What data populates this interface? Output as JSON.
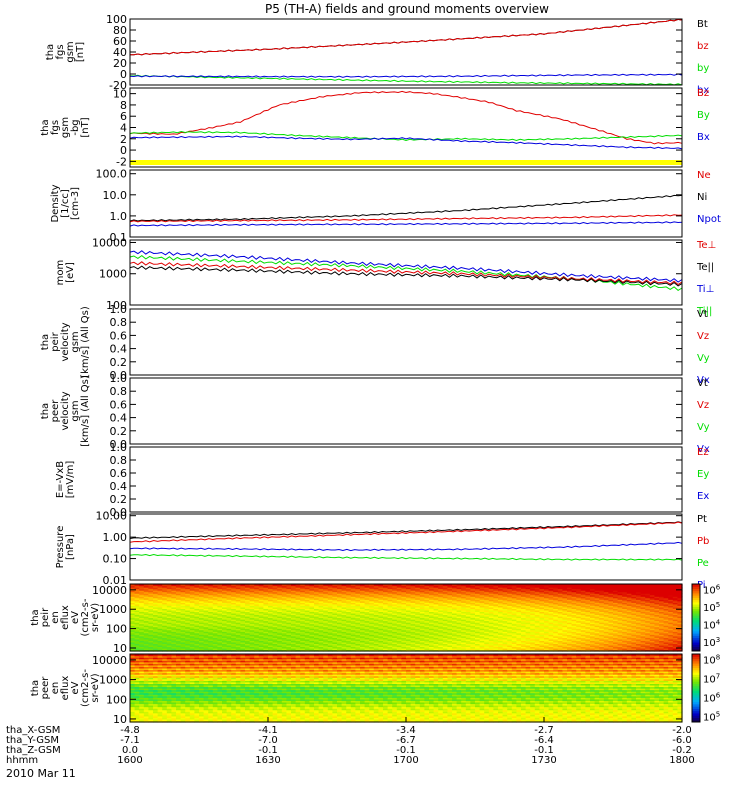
{
  "title": "P5 (TH-A) fields and ground moments overview",
  "date_label": "2010 Mar 11",
  "colors": {
    "black": "#000000",
    "red": "#e00000",
    "green": "#00dd00",
    "blue": "#0000dd",
    "yellow": "#ffff00"
  },
  "chart_data": [
    {
      "type": "line",
      "ylabel": [
        "tha",
        "fgs",
        "gsm",
        "[nT]"
      ],
      "yscale": "linear",
      "ylim": [
        -20,
        100
      ],
      "yticks": [
        "100",
        "80",
        "60",
        "40",
        "20",
        "0",
        "-20"
      ],
      "ytick_values": [
        100,
        80,
        60,
        40,
        20,
        0,
        -20
      ],
      "legend": [
        {
          "text": "Bt",
          "color": "black"
        },
        {
          "text": "bz",
          "color": "red"
        },
        {
          "text": "by",
          "color": "green"
        },
        {
          "text": "bx",
          "color": "blue"
        }
      ],
      "series": [
        {
          "color": "black",
          "x": [
            0,
            0.25,
            0.5,
            0.75,
            1
          ],
          "y": [
            35,
            45,
            58,
            73,
            99
          ]
        },
        {
          "color": "red",
          "x": [
            0,
            0.25,
            0.5,
            0.75,
            1
          ],
          "y": [
            35,
            45,
            58,
            73,
            99
          ]
        },
        {
          "color": "green",
          "x": [
            0,
            0.1,
            0.3,
            0.5,
            0.7,
            1
          ],
          "y": [
            -3,
            -5,
            -9,
            -13,
            -16,
            -19
          ]
        },
        {
          "color": "blue",
          "x": [
            0,
            0.2,
            0.4,
            0.6,
            0.8,
            1
          ],
          "y": [
            -4,
            -4.5,
            -5,
            -4,
            -2,
            -1
          ]
        }
      ]
    },
    {
      "type": "line",
      "ylabel": [
        "tha",
        "fgs",
        "gsm",
        "-bg",
        "[nT]"
      ],
      "yscale": "linear",
      "ylim": [
        -3,
        11
      ],
      "yticks": [
        "10",
        "8",
        "6",
        "4",
        "2",
        "0",
        "-2"
      ],
      "ytick_values": [
        10,
        8,
        6,
        4,
        2,
        0,
        -2
      ],
      "legend": [
        {
          "text": "Bz",
          "color": "red"
        },
        {
          "text": "By",
          "color": "green"
        },
        {
          "text": "Bx",
          "color": "blue"
        }
      ],
      "flag_bar": true,
      "series": [
        {
          "color": "red",
          "x": [
            0,
            0.08,
            0.12,
            0.15,
            0.2,
            0.27,
            0.35,
            0.42,
            0.5,
            0.55,
            0.6,
            0.65,
            0.7,
            0.78,
            0.85,
            0.9,
            0.95,
            1
          ],
          "y": [
            3,
            2.8,
            3.5,
            4,
            5,
            8,
            9.5,
            10.2,
            10.3,
            10,
            9.3,
            8.5,
            7,
            5.5,
            3.5,
            2,
            1.2,
            1.3
          ]
        },
        {
          "color": "green",
          "x": [
            0,
            0.1,
            0.2,
            0.3,
            0.4,
            0.5,
            0.6,
            0.7,
            0.8,
            0.9,
            1
          ],
          "y": [
            3,
            3.2,
            3.1,
            2.6,
            2.2,
            1.8,
            2,
            1.8,
            2,
            2.3,
            2.6
          ]
        },
        {
          "color": "blue",
          "x": [
            0,
            0.1,
            0.2,
            0.3,
            0.4,
            0.5,
            0.6,
            0.7,
            0.8,
            0.9,
            1
          ],
          "y": [
            2.2,
            2.3,
            2.4,
            2.1,
            1.9,
            2.1,
            1.6,
            1.3,
            0.9,
            0.5,
            0.3
          ]
        }
      ]
    },
    {
      "type": "line",
      "ylabel": [
        "Density",
        "[1/cc]",
        "[cm-3]"
      ],
      "yscale": "log",
      "ylim": [
        0.1,
        150
      ],
      "yticks": [
        "100.0",
        "10.0",
        "1.0",
        "0.1"
      ],
      "ytick_values": [
        100,
        10,
        1,
        0.1
      ],
      "legend": [
        {
          "text": "Ne",
          "color": "red"
        },
        {
          "text": "Ni",
          "color": "black"
        },
        {
          "text": "Npot",
          "color": "blue"
        }
      ],
      "series": [
        {
          "color": "black",
          "x": [
            0,
            0.2,
            0.4,
            0.6,
            0.8,
            1
          ],
          "y": [
            0.6,
            0.7,
            1.0,
            1.8,
            4.0,
            9.5
          ]
        },
        {
          "color": "red",
          "x": [
            0,
            0.2,
            0.4,
            0.6,
            0.8,
            1
          ],
          "y": [
            0.55,
            0.6,
            0.65,
            0.75,
            0.85,
            1.1
          ]
        },
        {
          "color": "blue",
          "x": [
            0,
            0.2,
            0.4,
            0.6,
            0.8,
            1
          ],
          "y": [
            0.35,
            0.38,
            0.4,
            0.42,
            0.45,
            0.5
          ]
        }
      ]
    },
    {
      "type": "line",
      "ylabel": [
        "mom",
        "[eV]"
      ],
      "yscale": "log",
      "ylim": [
        100,
        12000
      ],
      "yticks": [
        "10000",
        "1000",
        "100"
      ],
      "ytick_values": [
        10000,
        1000,
        100
      ],
      "legend": [
        {
          "text": "Te⊥",
          "color": "red"
        },
        {
          "text": "Te||",
          "color": "black"
        },
        {
          "text": "Ti⊥",
          "color": "blue"
        },
        {
          "text": "Ti||",
          "color": "green"
        }
      ],
      "series": [
        {
          "color": "blue",
          "x": [
            0,
            0.2,
            0.4,
            0.6,
            0.8,
            1
          ],
          "y": [
            5000,
            3500,
            2200,
            1500,
            900,
            600
          ]
        },
        {
          "color": "green",
          "x": [
            0,
            0.2,
            0.4,
            0.6,
            0.8,
            1
          ],
          "y": [
            3500,
            2500,
            1800,
            1200,
            700,
            320
          ]
        },
        {
          "color": "red",
          "x": [
            0,
            0.2,
            0.4,
            0.6,
            0.8,
            1
          ],
          "y": [
            2200,
            1700,
            1300,
            1000,
            700,
            500
          ]
        },
        {
          "color": "black",
          "x": [
            0,
            0.2,
            0.4,
            0.6,
            0.8,
            1
          ],
          "y": [
            1600,
            1300,
            1000,
            850,
            650,
            450
          ]
        }
      ]
    },
    {
      "type": "line",
      "ylabel": [
        "tha",
        "peir",
        "velocity",
        "gsm",
        "[km/s] (All Qs)"
      ],
      "yscale": "linear",
      "ylim": [
        0,
        1
      ],
      "yticks": [
        "1.0",
        "0.8",
        "0.6",
        "0.4",
        "0.2",
        "0.0"
      ],
      "ytick_values": [
        1,
        0.8,
        0.6,
        0.4,
        0.2,
        0
      ],
      "legend": [
        {
          "text": "Vt",
          "color": "black"
        },
        {
          "text": "Vz",
          "color": "red"
        },
        {
          "text": "Vy",
          "color": "green"
        },
        {
          "text": "Vx",
          "color": "blue"
        }
      ],
      "series": []
    },
    {
      "type": "line",
      "ylabel": [
        "tha",
        "peer",
        "velocity",
        "gsm",
        "[km/s] (All Qs)"
      ],
      "yscale": "linear",
      "ylim": [
        0,
        1
      ],
      "yticks": [
        "1.0",
        "0.8",
        "0.6",
        "0.4",
        "0.2",
        "0.0"
      ],
      "ytick_values": [
        1,
        0.8,
        0.6,
        0.4,
        0.2,
        0
      ],
      "legend": [
        {
          "text": "Vt",
          "color": "black"
        },
        {
          "text": "Vz",
          "color": "red"
        },
        {
          "text": "Vy",
          "color": "green"
        },
        {
          "text": "Vx",
          "color": "blue"
        }
      ],
      "series": []
    },
    {
      "type": "line",
      "ylabel": [
        "E=-VxB",
        "[mV/m]"
      ],
      "yscale": "linear",
      "ylim": [
        0,
        1
      ],
      "yticks": [
        "1.0",
        "0.8",
        "0.6",
        "0.4",
        "0.2",
        "0.0"
      ],
      "ytick_values": [
        1,
        0.8,
        0.6,
        0.4,
        0.2,
        0
      ],
      "legend": [
        {
          "text": "Ez",
          "color": "red"
        },
        {
          "text": "Ey",
          "color": "green"
        },
        {
          "text": "Ex",
          "color": "blue"
        }
      ],
      "series": []
    },
    {
      "type": "line",
      "ylabel": [
        "Pressure",
        "[nPa]"
      ],
      "yscale": "log",
      "ylim": [
        0.01,
        12
      ],
      "yticks": [
        "10.00",
        "1.00",
        "0.10",
        "0.01"
      ],
      "ytick_values": [
        10,
        1,
        0.1,
        0.01
      ],
      "legend": [
        {
          "text": "Pt",
          "color": "black"
        },
        {
          "text": "Pb",
          "color": "red"
        },
        {
          "text": "Pe",
          "color": "green"
        },
        {
          "text": "Pi",
          "color": "blue"
        }
      ],
      "series": [
        {
          "color": "black",
          "x": [
            0,
            0.2,
            0.4,
            0.6,
            0.8,
            1
          ],
          "y": [
            0.9,
            1.2,
            1.6,
            2.2,
            3.2,
            5.0
          ]
        },
        {
          "color": "red",
          "x": [
            0,
            0.2,
            0.4,
            0.6,
            0.8,
            1
          ],
          "y": [
            0.6,
            0.9,
            1.3,
            1.9,
            2.9,
            4.8
          ]
        },
        {
          "color": "blue",
          "x": [
            0,
            0.2,
            0.4,
            0.6,
            0.8,
            1
          ],
          "y": [
            0.3,
            0.28,
            0.25,
            0.27,
            0.35,
            0.55
          ]
        },
        {
          "color": "green",
          "x": [
            0,
            0.2,
            0.4,
            0.6,
            0.8,
            1
          ],
          "y": [
            0.15,
            0.13,
            0.11,
            0.1,
            0.09,
            0.09
          ]
        }
      ]
    },
    {
      "type": "heatmap",
      "ylabel": [
        "tha",
        "peir",
        "en",
        "eflux",
        "eV",
        "(cm2-s-",
        "sr-eV)"
      ],
      "yscale": "log",
      "ylim": [
        7,
        20000
      ],
      "yticks": [
        "10000",
        "1000",
        "100",
        "10"
      ],
      "ytick_values": [
        10000,
        1000,
        100,
        10
      ],
      "colorbar": {
        "min_exp": 2.5,
        "max_exp": 6.3,
        "labels": [
          {
            "base": "10",
            "exp": "6",
            "value": 6
          },
          {
            "base": "10",
            "exp": "5",
            "value": 5
          },
          {
            "base": "10",
            "exp": "4",
            "value": 4
          },
          {
            "base": "10",
            "exp": "3",
            "value": 3
          }
        ]
      }
    },
    {
      "type": "heatmap",
      "ylabel": [
        "tha",
        "peer",
        "en",
        "eflux",
        "eV",
        "(cm2-s-",
        "sr-eV)"
      ],
      "yscale": "log",
      "ylim": [
        7,
        20000
      ],
      "yticks": [
        "10000",
        "1000",
        "100",
        "10"
      ],
      "ytick_values": [
        10000,
        1000,
        100,
        10
      ],
      "colorbar": {
        "min_exp": 4.7,
        "max_exp": 8.3,
        "labels": [
          {
            "base": "10",
            "exp": "8",
            "value": 8
          },
          {
            "base": "10",
            "exp": "7",
            "value": 7
          },
          {
            "base": "10",
            "exp": "6",
            "value": 6
          },
          {
            "base": "10",
            "exp": "5",
            "value": 5
          }
        ]
      }
    }
  ],
  "x_axis": {
    "row_labels": [
      "tha_X-GSM",
      "tha_Y-GSM",
      "tha_Z-GSM",
      "hhmm"
    ],
    "columns": [
      {
        "values": [
          "-4.8",
          "-7.1",
          "0.0",
          "1600"
        ]
      },
      {
        "values": [
          "-4.1",
          "-7.0",
          "-0.1",
          "1630"
        ]
      },
      {
        "values": [
          "-3.4",
          "-6.7",
          "-0.1",
          "1700"
        ]
      },
      {
        "values": [
          "-2.7",
          "-6.4",
          "-0.1",
          "1730"
        ]
      },
      {
        "values": [
          "-2.0",
          "-6.0",
          "-0.2",
          "1800"
        ]
      }
    ]
  }
}
